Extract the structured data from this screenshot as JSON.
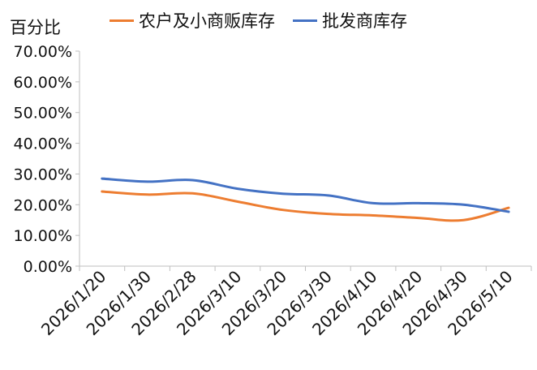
{
  "chart_data": {
    "type": "line",
    "ylabel": "百分比",
    "xlabel": "",
    "title": "",
    "categories": [
      "2026/1/20",
      "2026/1/30",
      "2026/2/28",
      "2026/3/10",
      "2026/3/20",
      "2026/3/30",
      "2026/4/10",
      "2026/4/20",
      "2026/4/30",
      "2026/5/10"
    ],
    "yticks": [
      "0.00%",
      "10.00%",
      "20.00%",
      "30.00%",
      "40.00%",
      "50.00%",
      "60.00%",
      "70.00%"
    ],
    "ylim": [
      0,
      70
    ],
    "legend_position": "top",
    "grid": false,
    "series": [
      {
        "name": "农户及小商贩库存",
        "color": "#ED7D31",
        "values": [
          24.3,
          23.3,
          23.7,
          21.0,
          18.3,
          17.0,
          16.5,
          15.7,
          15.0,
          19.0
        ]
      },
      {
        "name": "批发商库存",
        "color": "#4472C4",
        "values": [
          28.5,
          27.5,
          28.0,
          25.2,
          23.6,
          23.0,
          20.5,
          20.5,
          20.0,
          17.7
        ]
      }
    ]
  }
}
